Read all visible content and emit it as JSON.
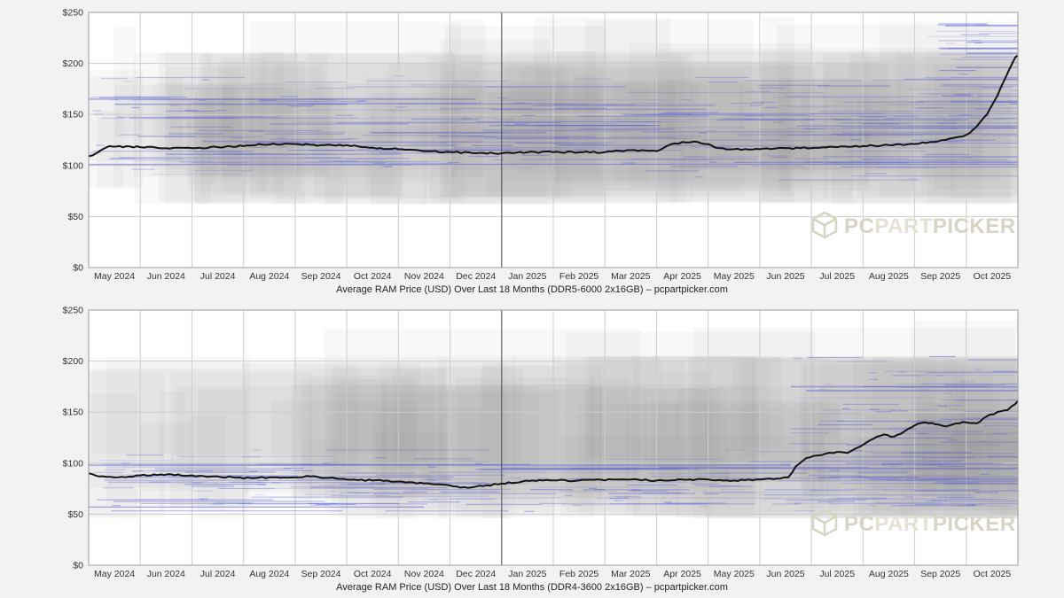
{
  "page": {
    "background": "#f2f2f2"
  },
  "watermark": {
    "icon": "cube-icon",
    "text_pc": "PC",
    "text_part": "PART",
    "text_picker": "PICKER",
    "color_outer": "#d7d4c2",
    "color_inner": "#e4e1d2"
  },
  "colors": {
    "plot_bg": "#ffffff",
    "gridline": "#cccccc",
    "year_gridline": "#444444",
    "plot_border": "#999999",
    "average_line": "#141414",
    "scatter_blue": "85,85,212",
    "listing_gray": "rgba(125,125,125,0.055)",
    "axis_text": "#333333"
  },
  "chart_data": [
    {
      "type": "line",
      "title": "Average RAM Price (USD) Over Last 18 Months (DDR5-6000 2x16GB) – pcpartpicker.com",
      "product": "DDR5-6000 2x16GB",
      "xlabel": "",
      "ylabel": "Price (USD)",
      "ylim": [
        0,
        250
      ],
      "x_months": 18,
      "year_boundary_index": 8,
      "x_tick_labels": [
        "May 2024",
        "Jun 2024",
        "Jul 2024",
        "Aug 2024",
        "Sep 2024",
        "Oct 2024",
        "Nov 2024",
        "Dec 2024",
        "Jan 2025",
        "Feb 2025",
        "Mar 2025",
        "Apr 2025",
        "May 2025",
        "Jun 2025",
        "Jul 2025",
        "Aug 2025",
        "Sep 2025",
        "Oct 2025"
      ],
      "y_tick_labels": [
        "$0",
        "$50",
        "$100",
        "$150",
        "$200",
        "$250"
      ],
      "seed": 11,
      "series": [
        {
          "name": "Average Price",
          "points": [
            [
              0,
              109
            ],
            [
              0.15,
              112
            ],
            [
              0.4,
              119
            ],
            [
              1,
              118
            ],
            [
              1.5,
              117
            ],
            [
              2,
              117
            ],
            [
              2.5,
              118
            ],
            [
              3,
              119
            ],
            [
              3.3,
              121
            ],
            [
              4,
              121
            ],
            [
              4.5,
              120
            ],
            [
              5,
              120
            ],
            [
              5.3,
              118
            ],
            [
              6,
              116
            ],
            [
              6.5,
              114
            ],
            [
              7,
              113
            ],
            [
              7.5,
              112
            ],
            [
              8,
              112
            ],
            [
              8.5,
              113
            ],
            [
              9,
              113
            ],
            [
              9.5,
              113
            ],
            [
              10,
              113
            ],
            [
              10.5,
              115
            ],
            [
              11,
              114
            ],
            [
              11.2,
              119
            ],
            [
              11.5,
              123
            ],
            [
              11.8,
              123
            ],
            [
              12,
              121
            ],
            [
              12.2,
              117
            ],
            [
              12.5,
              116
            ],
            [
              13,
              116
            ],
            [
              13.5,
              117
            ],
            [
              14,
              117
            ],
            [
              14.5,
              118
            ],
            [
              15,
              119
            ],
            [
              15.5,
              120
            ],
            [
              16,
              121
            ],
            [
              16.3,
              123
            ],
            [
              16.6,
              125
            ],
            [
              17,
              130
            ],
            [
              17.2,
              138
            ],
            [
              17.4,
              150
            ],
            [
              17.6,
              168
            ],
            [
              17.75,
              185
            ],
            [
              17.85,
              196
            ],
            [
              17.95,
              206
            ],
            [
              18,
              208
            ]
          ]
        }
      ],
      "scatter": {
        "gray_blocks": 85,
        "gray_band": [
          62,
          212
        ],
        "blue_lines": 300,
        "blue_band": [
          85,
          192
        ],
        "blue_core": [
          98,
          168
        ],
        "cluster": {
          "x_from": 16.3,
          "count": 45,
          "band": [
            140,
            240
          ]
        }
      },
      "long_blue_lines": [
        [
          0,
          7.5,
          165
        ],
        [
          0.5,
          5,
          160
        ],
        [
          0,
          18,
          101
        ],
        [
          16.6,
          18,
          237
        ],
        [
          17,
          18,
          210
        ],
        [
          16.8,
          18,
          196
        ]
      ]
    },
    {
      "type": "line",
      "title": "Average RAM Price (USD) Over Last 18 Months (DDR4-3600 2x16GB) – pcpartpicker.com",
      "product": "DDR4-3600 2x16GB",
      "xlabel": "",
      "ylabel": "Price (USD)",
      "ylim": [
        0,
        250
      ],
      "x_months": 18,
      "year_boundary_index": 8,
      "x_tick_labels": [
        "May 2024",
        "Jun 2024",
        "Jul 2024",
        "Aug 2024",
        "Sep 2024",
        "Oct 2024",
        "Nov 2024",
        "Dec 2024",
        "Jan 2025",
        "Feb 2025",
        "Mar 2025",
        "Apr 2025",
        "May 2025",
        "Jun 2025",
        "Jul 2025",
        "Aug 2025",
        "Sep 2025",
        "Oct 2025"
      ],
      "y_tick_labels": [
        "$0",
        "$50",
        "$100",
        "$150",
        "$200",
        "$250"
      ],
      "seed": 23,
      "series": [
        {
          "name": "Average Price",
          "points": [
            [
              0,
              90
            ],
            [
              0.2,
              87
            ],
            [
              0.5,
              86
            ],
            [
              1,
              88
            ],
            [
              1.4,
              89
            ],
            [
              2,
              88
            ],
            [
              2.5,
              87
            ],
            [
              3,
              85
            ],
            [
              3.5,
              86
            ],
            [
              4,
              86
            ],
            [
              4.3,
              87
            ],
            [
              5,
              84
            ],
            [
              5.5,
              83
            ],
            [
              6,
              82
            ],
            [
              6.5,
              80
            ],
            [
              7,
              78
            ],
            [
              7.2,
              76
            ],
            [
              7.5,
              77
            ],
            [
              8,
              80
            ],
            [
              8.4,
              82
            ],
            [
              8.8,
              83
            ],
            [
              9.5,
              83
            ],
            [
              10.5,
              84
            ],
            [
              11,
              83
            ],
            [
              11.5,
              84
            ],
            [
              12,
              84
            ],
            [
              12.5,
              83
            ],
            [
              13,
              84
            ],
            [
              13.4,
              85
            ],
            [
              13.55,
              86
            ],
            [
              13.7,
              97
            ],
            [
              13.9,
              105
            ],
            [
              14.2,
              108
            ],
            [
              14.5,
              111
            ],
            [
              14.7,
              110
            ],
            [
              15,
              118
            ],
            [
              15.2,
              124
            ],
            [
              15.4,
              128
            ],
            [
              15.6,
              126
            ],
            [
              15.8,
              131
            ],
            [
              16,
              137
            ],
            [
              16.2,
              140
            ],
            [
              16.4,
              138
            ],
            [
              16.6,
              136
            ],
            [
              16.8,
              139
            ],
            [
              17,
              140
            ],
            [
              17.2,
              139
            ],
            [
              17.4,
              146
            ],
            [
              17.6,
              150
            ],
            [
              17.8,
              152
            ],
            [
              17.95,
              158
            ],
            [
              18,
              161
            ]
          ]
        }
      ],
      "scatter": {
        "gray_blocks": 75,
        "gray_band": [
          46,
          205
        ],
        "blue_lines": 240,
        "blue_band": [
          50,
          115
        ],
        "blue_core": [
          58,
          100
        ],
        "cluster": {
          "x_from": 13.5,
          "count": 70,
          "band": [
            105,
            205
          ]
        }
      },
      "long_blue_lines": [
        [
          0,
          6.5,
          57
        ],
        [
          0,
          13.6,
          98
        ],
        [
          13.6,
          18,
          175
        ],
        [
          13.9,
          18,
          171
        ],
        [
          8,
          18,
          95
        ]
      ]
    }
  ]
}
